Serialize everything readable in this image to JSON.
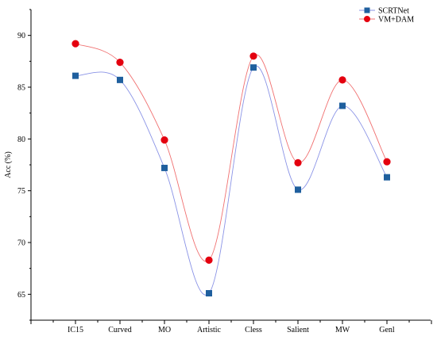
{
  "chart_data": {
    "type": "line",
    "categories": [
      "IC15",
      "Curved",
      "MO",
      "Artistic",
      "Cless",
      "Salient",
      "MW",
      "Genl"
    ],
    "series": [
      {
        "name": "SCRTNet",
        "values": [
          86.1,
          85.7,
          77.2,
          65.1,
          86.9,
          75.1,
          83.2,
          76.3
        ],
        "color": "#1f5f9e",
        "line_color": "#8a93e6",
        "marker": "square"
      },
      {
        "name": "VM+DAM",
        "values": [
          89.2,
          87.4,
          79.9,
          68.3,
          88.0,
          77.7,
          85.7,
          77.8
        ],
        "color": "#e4000f",
        "line_color": "#f07070",
        "marker": "circle"
      }
    ],
    "ylabel": "Acc (%)",
    "ylim": [
      62.5,
      92.5
    ],
    "yticks": [
      65,
      70,
      75,
      80,
      85,
      90
    ],
    "grid": false,
    "legend_position": "top-right",
    "smooth": true
  }
}
